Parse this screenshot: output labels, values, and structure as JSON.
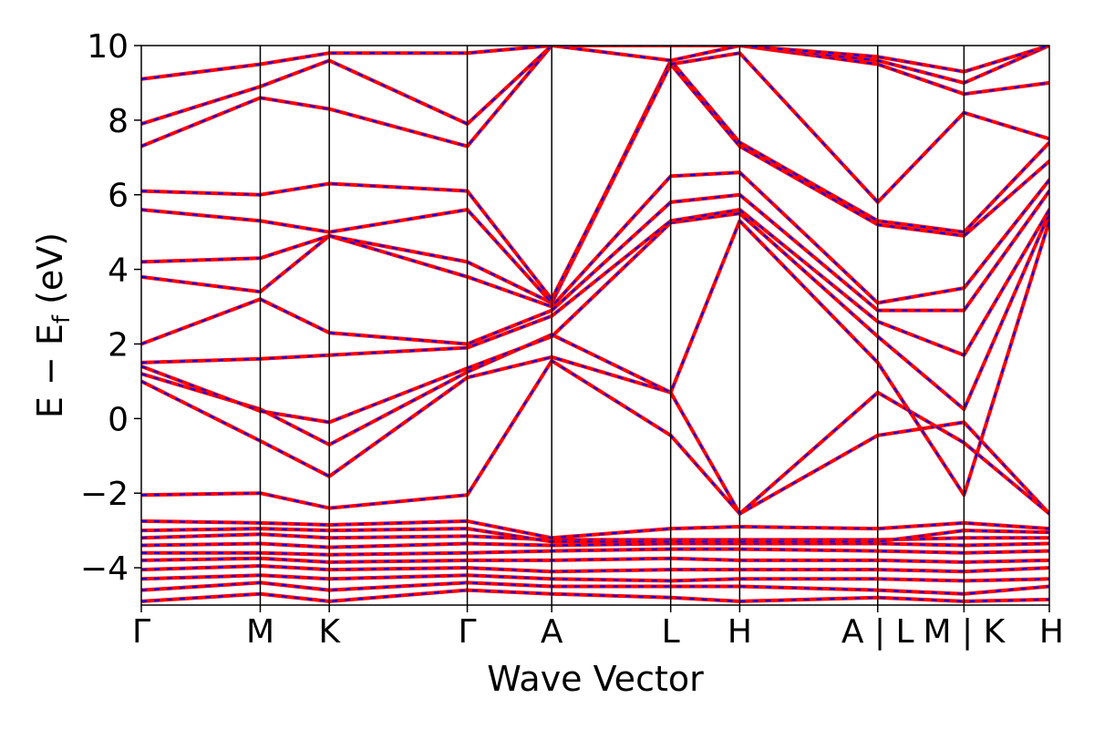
{
  "chart_data": {
    "type": "line",
    "title": "",
    "xlabel": "Wave Vector",
    "ylabel_main": "E − E",
    "ylabel_sub": "f",
    "ylabel_unit": " (eV)",
    "ylim": [
      -5,
      10
    ],
    "yticks": [
      {
        "value": -4,
        "label": "−4"
      },
      {
        "value": -2,
        "label": "−2"
      },
      {
        "value": 0,
        "label": "0"
      },
      {
        "value": 2,
        "label": "2"
      },
      {
        "value": 4,
        "label": "4"
      },
      {
        "value": 6,
        "label": "6"
      },
      {
        "value": 8,
        "label": "8"
      },
      {
        "value": 10,
        "label": "10"
      }
    ],
    "xlim": [
      0,
      1
    ],
    "xticks": [
      {
        "value": 0.0,
        "label": "Γ"
      },
      {
        "value": 0.131,
        "label": "M"
      },
      {
        "value": 0.207,
        "label": "K"
      },
      {
        "value": 0.359,
        "label": "Γ"
      },
      {
        "value": 0.452,
        "label": "A"
      },
      {
        "value": 0.583,
        "label": "L"
      },
      {
        "value": 0.659,
        "label": "H"
      },
      {
        "value": 0.811,
        "label": "A | L"
      },
      {
        "value": 0.906,
        "label": "M | K"
      },
      {
        "value": 1.0,
        "label": "H"
      }
    ],
    "grid": false,
    "series_style": {
      "primary_color": "#ff0000",
      "overlay_color": "#0000ff",
      "overlay_dashed": true,
      "axis_color": "#000000"
    },
    "bands": [
      {
        "points": [
          [
            0,
            -4.9
          ],
          [
            0.131,
            -4.7
          ],
          [
            0.207,
            -4.9
          ],
          [
            0.359,
            -4.6
          ],
          [
            0.452,
            -4.7
          ],
          [
            0.583,
            -4.8
          ],
          [
            0.659,
            -4.9
          ],
          [
            0.811,
            -4.8
          ],
          [
            0.906,
            -4.9
          ],
          [
            1,
            -4.85
          ]
        ]
      },
      {
        "points": [
          [
            0,
            -4.6
          ],
          [
            0.131,
            -4.4
          ],
          [
            0.207,
            -4.6
          ],
          [
            0.359,
            -4.4
          ],
          [
            0.452,
            -4.5
          ],
          [
            0.583,
            -4.5
          ],
          [
            0.659,
            -4.5
          ],
          [
            0.811,
            -4.6
          ],
          [
            0.906,
            -4.7
          ],
          [
            1,
            -4.5
          ]
        ]
      },
      {
        "points": [
          [
            0,
            -4.3
          ],
          [
            0.131,
            -4.2
          ],
          [
            0.207,
            -4.3
          ],
          [
            0.359,
            -4.2
          ],
          [
            0.452,
            -4.3
          ],
          [
            0.583,
            -4.35
          ],
          [
            0.659,
            -4.3
          ],
          [
            0.811,
            -4.3
          ],
          [
            0.906,
            -4.35
          ],
          [
            1,
            -4.3
          ]
        ]
      },
      {
        "points": [
          [
            0,
            -4.05
          ],
          [
            0.131,
            -3.95
          ],
          [
            0.207,
            -4.05
          ],
          [
            0.359,
            -4.0
          ],
          [
            0.452,
            -4.1
          ],
          [
            0.583,
            -4.05
          ],
          [
            0.659,
            -4.05
          ],
          [
            0.811,
            -4.05
          ],
          [
            0.906,
            -4.1
          ],
          [
            1,
            -4.0
          ]
        ]
      },
      {
        "points": [
          [
            0,
            -3.8
          ],
          [
            0.131,
            -3.75
          ],
          [
            0.207,
            -3.85
          ],
          [
            0.359,
            -3.8
          ],
          [
            0.452,
            -3.8
          ],
          [
            0.583,
            -3.75
          ],
          [
            0.659,
            -3.8
          ],
          [
            0.811,
            -3.8
          ],
          [
            0.906,
            -3.85
          ],
          [
            1,
            -3.8
          ]
        ]
      },
      {
        "points": [
          [
            0,
            -3.6
          ],
          [
            0.131,
            -3.6
          ],
          [
            0.207,
            -3.65
          ],
          [
            0.359,
            -3.6
          ],
          [
            0.452,
            -3.55
          ],
          [
            0.583,
            -3.5
          ],
          [
            0.659,
            -3.5
          ],
          [
            0.811,
            -3.55
          ],
          [
            0.906,
            -3.6
          ],
          [
            1,
            -3.55
          ]
        ]
      },
      {
        "points": [
          [
            0,
            -3.4
          ],
          [
            0.131,
            -3.35
          ],
          [
            0.207,
            -3.45
          ],
          [
            0.359,
            -3.35
          ],
          [
            0.452,
            -3.4
          ],
          [
            0.583,
            -3.35
          ],
          [
            0.659,
            -3.35
          ],
          [
            0.811,
            -3.35
          ],
          [
            0.906,
            -3.4
          ],
          [
            1,
            -3.35
          ]
        ]
      },
      {
        "points": [
          [
            0,
            -3.2
          ],
          [
            0.131,
            -3.1
          ],
          [
            0.207,
            -3.2
          ],
          [
            0.359,
            -3.15
          ],
          [
            0.452,
            -3.25
          ],
          [
            0.583,
            -3.25
          ],
          [
            0.659,
            -3.25
          ],
          [
            0.811,
            -3.25
          ],
          [
            0.906,
            -3.2
          ],
          [
            1,
            -3.2
          ]
        ]
      },
      {
        "points": [
          [
            0,
            -3.0
          ],
          [
            0.131,
            -2.95
          ],
          [
            0.207,
            -3.0
          ],
          [
            0.359,
            -2.95
          ],
          [
            0.452,
            -3.3
          ],
          [
            0.583,
            -3.3
          ],
          [
            0.659,
            -3.3
          ],
          [
            0.811,
            -3.3
          ],
          [
            0.906,
            -3.0
          ],
          [
            1,
            -3.05
          ]
        ]
      },
      {
        "points": [
          [
            0,
            -2.75
          ],
          [
            0.131,
            -2.8
          ],
          [
            0.207,
            -2.85
          ],
          [
            0.359,
            -2.75
          ],
          [
            0.452,
            -3.2
          ],
          [
            0.583,
            -2.95
          ],
          [
            0.659,
            -2.9
          ],
          [
            0.811,
            -2.95
          ],
          [
            0.906,
            -2.8
          ],
          [
            1,
            -2.95
          ]
        ]
      },
      {
        "points": [
          [
            0,
            -2.05
          ],
          [
            0.131,
            -2.0
          ],
          [
            0.207,
            -2.4
          ],
          [
            0.359,
            -2.05
          ],
          [
            0.452,
            1.55
          ],
          [
            0.583,
            -0.45
          ],
          [
            0.659,
            -2.55
          ],
          [
            0.811,
            -0.45
          ],
          [
            0.906,
            -0.1
          ],
          [
            1,
            -2.55
          ]
        ]
      },
      {
        "points": [
          [
            0,
            1.0
          ],
          [
            0.131,
            -0.6
          ],
          [
            0.207,
            -1.55
          ],
          [
            0.359,
            1.1
          ],
          [
            0.452,
            1.65
          ],
          [
            0.583,
            0.7
          ],
          [
            0.659,
            -2.55
          ],
          [
            0.811,
            0.7
          ],
          [
            0.906,
            -0.65
          ],
          [
            1,
            -2.55
          ]
        ]
      },
      {
        "points": [
          [
            0,
            1.2
          ],
          [
            0.131,
            0.25
          ],
          [
            0.207,
            -0.7
          ],
          [
            0.359,
            1.25
          ],
          [
            0.452,
            2.25
          ],
          [
            0.583,
            0.7
          ],
          [
            0.659,
            5.3
          ],
          [
            0.811,
            1.5
          ],
          [
            0.906,
            -2.05
          ],
          [
            1,
            5.3
          ]
        ]
      },
      {
        "points": [
          [
            0,
            1.4
          ],
          [
            0.131,
            0.2
          ],
          [
            0.207,
            -0.1
          ],
          [
            0.359,
            1.35
          ],
          [
            0.452,
            2.2
          ],
          [
            0.583,
            5.25
          ],
          [
            0.659,
            5.5
          ],
          [
            0.811,
            2.2
          ],
          [
            0.906,
            0.25
          ],
          [
            1,
            5.5
          ]
        ]
      },
      {
        "points": [
          [
            0,
            1.5
          ],
          [
            0.131,
            1.6
          ],
          [
            0.207,
            1.7
          ],
          [
            0.359,
            1.9
          ],
          [
            0.452,
            2.75
          ],
          [
            0.583,
            5.3
          ],
          [
            0.659,
            5.6
          ],
          [
            0.811,
            2.6
          ],
          [
            0.906,
            1.7
          ],
          [
            1,
            5.6
          ]
        ]
      },
      {
        "points": [
          [
            0,
            2.0
          ],
          [
            0.131,
            3.2
          ],
          [
            0.207,
            2.3
          ],
          [
            0.359,
            2.0
          ],
          [
            0.452,
            2.9
          ],
          [
            0.583,
            5.8
          ],
          [
            0.659,
            6.0
          ],
          [
            0.811,
            2.9
          ],
          [
            0.906,
            2.9
          ],
          [
            1,
            6.1
          ]
        ]
      },
      {
        "points": [
          [
            0,
            3.8
          ],
          [
            0.131,
            3.4
          ],
          [
            0.207,
            4.9
          ],
          [
            0.359,
            3.8
          ],
          [
            0.452,
            3.0
          ],
          [
            0.583,
            6.5
          ],
          [
            0.659,
            6.6
          ],
          [
            0.811,
            3.1
          ],
          [
            0.906,
            3.5
          ],
          [
            1,
            6.4
          ]
        ]
      },
      {
        "points": [
          [
            0,
            4.2
          ],
          [
            0.131,
            4.3
          ],
          [
            0.207,
            4.9
          ],
          [
            0.359,
            4.2
          ],
          [
            0.452,
            3.1
          ],
          [
            0.583,
            9.5
          ],
          [
            0.659,
            7.3
          ],
          [
            0.811,
            5.2
          ],
          [
            0.906,
            4.9
          ],
          [
            1,
            6.9
          ]
        ]
      },
      {
        "points": [
          [
            0,
            5.6
          ],
          [
            0.131,
            5.3
          ],
          [
            0.207,
            5.0
          ],
          [
            0.359,
            5.6
          ],
          [
            0.452,
            3.1
          ],
          [
            0.583,
            9.6
          ],
          [
            0.659,
            7.4
          ],
          [
            0.811,
            5.3
          ],
          [
            0.906,
            5.0
          ],
          [
            1,
            7.4
          ]
        ]
      },
      {
        "points": [
          [
            0,
            6.1
          ],
          [
            0.131,
            6.0
          ],
          [
            0.207,
            6.3
          ],
          [
            0.359,
            6.1
          ],
          [
            0.452,
            3.2
          ],
          [
            0.583,
            9.5
          ],
          [
            0.659,
            9.8
          ],
          [
            0.811,
            5.8
          ],
          [
            0.906,
            8.2
          ],
          [
            1,
            7.5
          ]
        ]
      },
      {
        "points": [
          [
            0,
            7.3
          ],
          [
            0.131,
            8.6
          ],
          [
            0.207,
            8.3
          ],
          [
            0.359,
            7.3
          ],
          [
            0.452,
            10.0
          ],
          [
            0.583,
            9.6
          ],
          [
            0.659,
            10.0
          ],
          [
            0.811,
            9.5
          ],
          [
            0.906,
            8.7
          ],
          [
            1,
            9.0
          ]
        ]
      },
      {
        "points": [
          [
            0,
            7.9
          ],
          [
            0.131,
            8.9
          ],
          [
            0.207,
            9.6
          ],
          [
            0.359,
            7.9
          ],
          [
            0.452,
            10.0
          ],
          [
            0.583,
            10.0
          ],
          [
            0.659,
            10.0
          ],
          [
            0.811,
            9.6
          ],
          [
            0.906,
            9.0
          ],
          [
            1,
            10.0
          ]
        ]
      },
      {
        "points": [
          [
            0,
            9.1
          ],
          [
            0.131,
            9.5
          ],
          [
            0.207,
            9.8
          ],
          [
            0.359,
            9.8
          ],
          [
            0.452,
            10.0
          ],
          [
            0.583,
            10.0
          ],
          [
            0.659,
            10.0
          ],
          [
            0.811,
            9.7
          ],
          [
            0.906,
            9.3
          ],
          [
            1,
            10.0
          ]
        ]
      }
    ]
  }
}
